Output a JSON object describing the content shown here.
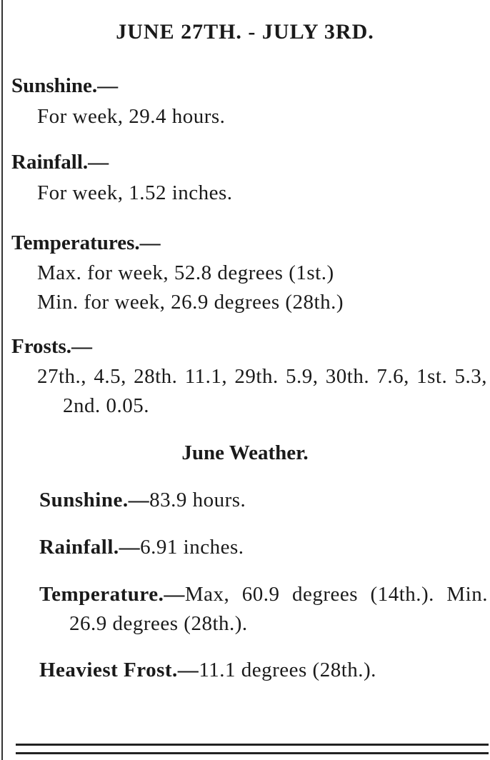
{
  "title": "JUNE 27TH. - JULY 3RD.",
  "sections": [
    {
      "heading": "Sunshine.—",
      "lines": [
        "For week, 29.4 hours."
      ]
    },
    {
      "heading": "Rainfall.—",
      "lines": [
        "For week, 1.52 inches."
      ]
    },
    {
      "heading": "Temperatures.—",
      "lines": [
        "Max. for week, 52.8 degrees (1st.)",
        "Min. for week, 26.9 degrees (28th.)"
      ]
    },
    {
      "heading": "Frosts.—",
      "lines": [
        "27th., 4.5, 28th. 11.1, 29th. 5.9, 30th. 7.6, 1st. 5.3, 2nd. 0.05."
      ]
    }
  ],
  "subtitle": "June Weather.",
  "summary": [
    {
      "heading": "Sunshine.—",
      "text": "83.9 hours."
    },
    {
      "heading": "Rainfall.—",
      "text": "6.91 inches."
    },
    {
      "heading": "Temperature.—",
      "text": "Max, 60.9 degrees (14th.). Min. 26.9 degrees (28th.)."
    },
    {
      "heading": "Heaviest Frost.—",
      "text": "11.1 degrees (28th.)."
    }
  ]
}
